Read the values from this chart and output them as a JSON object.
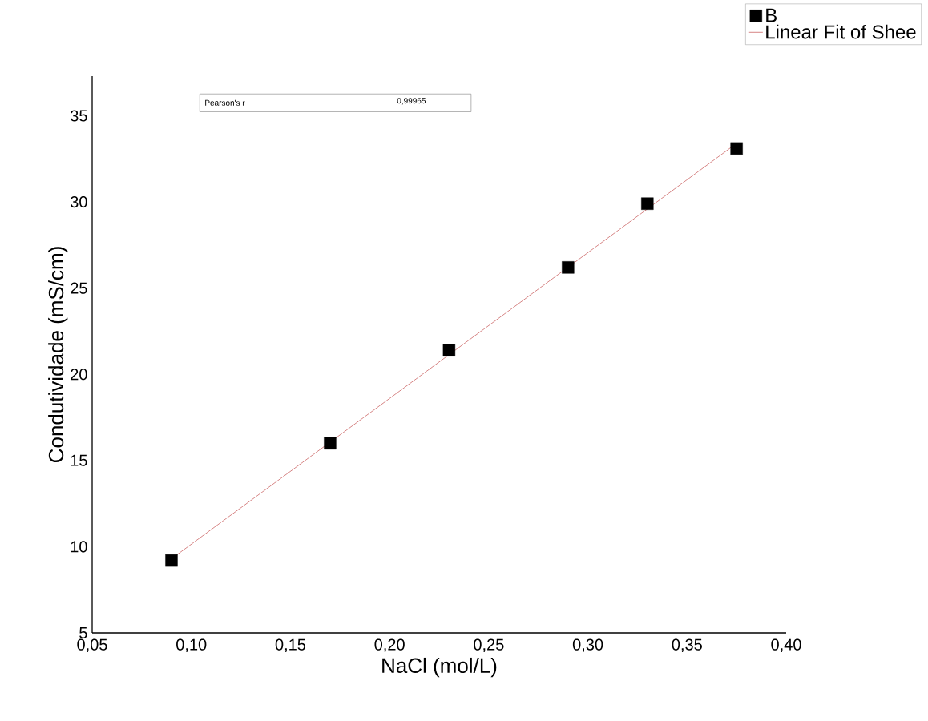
{
  "chart_data": {
    "type": "scatter",
    "xlabel": "NaCl (mol/L)",
    "ylabel": "Condutividade (mS/cm)",
    "xlim": [
      0.05,
      0.4
    ],
    "ylim": [
      5,
      37.3
    ],
    "xticks": [
      {
        "value": 0.05,
        "label": "0,05"
      },
      {
        "value": 0.1,
        "label": "0,10"
      },
      {
        "value": 0.15,
        "label": "0,15"
      },
      {
        "value": 0.2,
        "label": "0,20"
      },
      {
        "value": 0.25,
        "label": "0,25"
      },
      {
        "value": 0.3,
        "label": "0,30"
      },
      {
        "value": 0.35,
        "label": "0,35"
      },
      {
        "value": 0.4,
        "label": "0,40"
      }
    ],
    "yticks": [
      5,
      10,
      15,
      20,
      25,
      30,
      35
    ],
    "legend": "top right",
    "annotations": [
      "Pearson's r",
      "0,99965"
    ],
    "series": [
      {
        "name": "B",
        "marker": "square",
        "color": "#000000",
        "x": [
          0.09,
          0.17,
          0.23,
          0.29,
          0.33,
          0.375
        ],
        "values": [
          9.2,
          16.0,
          21.4,
          26.2,
          29.9,
          33.1
        ]
      },
      {
        "name": "Linear Fit of Shee",
        "type": "line",
        "color": "#cc6666",
        "x": [
          0.09,
          0.375
        ],
        "values": [
          9.3,
          33.4
        ]
      }
    ]
  }
}
